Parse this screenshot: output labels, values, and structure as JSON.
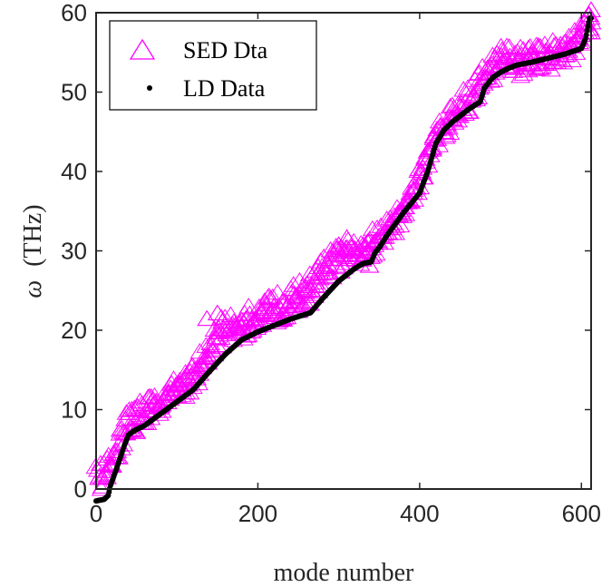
{
  "chart_data": {
    "type": "scatter",
    "xlabel": "mode number",
    "ylabel_symbol": "ω",
    "ylabel_unit": "(THz)",
    "xlim": [
      0,
      612
    ],
    "ylim": [
      0,
      60
    ],
    "xticks": [
      0,
      200,
      400,
      600
    ],
    "yticks": [
      0,
      10,
      20,
      30,
      40,
      50,
      60
    ],
    "grid": false,
    "legend_position": "top-left",
    "colors": {
      "sed": "#ff00ff",
      "ld": "#000000",
      "axis": "#262626"
    },
    "series": [
      {
        "name": "SED Dta",
        "marker": "open-triangle",
        "x": [
          0,
          10,
          20,
          30,
          40,
          50,
          60,
          80,
          100,
          120,
          140,
          150,
          160,
          180,
          200,
          220,
          240,
          260,
          280,
          300,
          320,
          340,
          360,
          380,
          400,
          420,
          440,
          460,
          480,
          500,
          510,
          520,
          540,
          560,
          580,
          600,
          610
        ],
        "y": [
          0.7,
          1.2,
          2.8,
          6.2,
          8.0,
          8.8,
          9.3,
          10.6,
          12.2,
          14.1,
          16.8,
          19.5,
          19.6,
          20.4,
          21.4,
          22.4,
          23.4,
          24.5,
          27.0,
          28.8,
          29.6,
          30.4,
          32.2,
          34.8,
          38.8,
          44.2,
          46.5,
          48.8,
          51.5,
          53.8,
          53.6,
          53.6,
          53.9,
          54.4,
          54.8,
          56.5,
          59.0
        ]
      },
      {
        "name": "LD Data",
        "marker": "dot",
        "x": [
          0,
          10,
          15,
          18,
          25,
          30,
          35,
          40,
          45,
          50,
          60,
          80,
          100,
          120,
          140,
          160,
          180,
          200,
          220,
          240,
          265,
          280,
          300,
          320,
          330,
          340,
          345,
          350,
          360,
          380,
          400,
          410,
          420,
          430,
          440,
          460,
          475,
          480,
          490,
          500,
          510,
          520,
          540,
          560,
          580,
          600,
          605,
          610
        ],
        "y": [
          -1.5,
          -1.3,
          -0.8,
          0.5,
          2.5,
          4.0,
          5.5,
          6.8,
          7.2,
          7.5,
          8.0,
          9.5,
          11.0,
          12.5,
          14.8,
          17.0,
          18.8,
          19.8,
          20.6,
          21.4,
          22.2,
          24.0,
          26.2,
          27.8,
          28.4,
          28.6,
          29.8,
          30.4,
          32.0,
          34.8,
          37.3,
          40.0,
          43.5,
          45.2,
          46.2,
          47.8,
          48.8,
          50.5,
          51.8,
          52.5,
          53.0,
          53.4,
          53.8,
          54.3,
          54.8,
          55.5,
          56.7,
          59.3
        ]
      }
    ]
  }
}
